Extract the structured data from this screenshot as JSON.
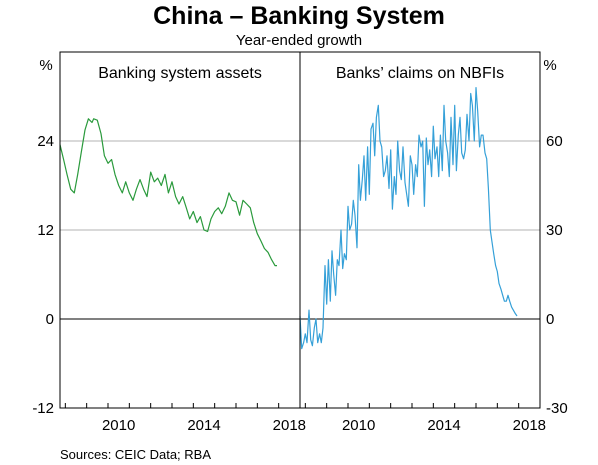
{
  "chart_data": {
    "type": "line",
    "title": "China – Banking System",
    "subtitle": "Year-ended growth",
    "source": "Sources:   CEIC Data; RBA",
    "x_tick_labels": [
      "2010",
      "2014",
      "2018"
    ],
    "panels": [
      {
        "title": "Banking system assets",
        "yunit": "%",
        "ylim": [
          -12,
          36
        ],
        "yticks": [
          -12,
          0,
          12,
          24
        ],
        "xlim": [
          2007.75,
          2019.0
        ],
        "series": [
          {
            "color": "#2a9a3c",
            "x": [
              2007.75,
              2007.92,
              2008.08,
              2008.25,
              2008.42,
              2008.58,
              2008.75,
              2008.92,
              2009.08,
              2009.25,
              2009.33,
              2009.5,
              2009.67,
              2009.83,
              2010.0,
              2010.17,
              2010.33,
              2010.5,
              2010.67,
              2010.83,
              2011.0,
              2011.17,
              2011.33,
              2011.5,
              2011.67,
              2011.83,
              2012.0,
              2012.17,
              2012.33,
              2012.5,
              2012.67,
              2012.83,
              2013.0,
              2013.17,
              2013.33,
              2013.5,
              2013.67,
              2013.83,
              2014.0,
              2014.17,
              2014.33,
              2014.5,
              2014.67,
              2014.83,
              2015.0,
              2015.17,
              2015.33,
              2015.5,
              2015.67,
              2015.83,
              2016.0,
              2016.17,
              2016.33,
              2016.5,
              2016.67,
              2016.83,
              2017.0,
              2017.17,
              2017.33,
              2017.5,
              2017.67,
              2017.83,
              2017.92
            ],
            "y": [
              23.5,
              21.5,
              19.5,
              17.5,
              17.0,
              19.5,
              22.5,
              25.5,
              27.0,
              26.5,
              27.0,
              26.8,
              25.0,
              22.0,
              21.0,
              21.5,
              19.5,
              18.0,
              17.0,
              18.5,
              17.0,
              16.0,
              17.5,
              18.8,
              17.5,
              16.5,
              19.8,
              18.5,
              19.0,
              18.0,
              19.5,
              17.0,
              18.5,
              16.5,
              15.5,
              16.5,
              15.0,
              13.5,
              14.5,
              13.0,
              13.8,
              12.0,
              11.8,
              13.5,
              14.5,
              15.0,
              14.2,
              15.2,
              17.0,
              16.0,
              15.8,
              14.0,
              16.0,
              15.5,
              15.0,
              13.0,
              11.5,
              10.5,
              9.5,
              9.0,
              8.0,
              7.2,
              7.2
            ]
          }
        ]
      },
      {
        "title": "Banks’ claims on NBFIs",
        "yunit": "%",
        "ylim": [
          -30,
          90
        ],
        "yticks": [
          -30,
          0,
          30,
          60
        ],
        "xlim": [
          2007.75,
          2019.0
        ],
        "series": [
          {
            "color": "#35a0d8",
            "x": [
              2007.75,
              2007.83,
              2007.92,
              2008.0,
              2008.08,
              2008.17,
              2008.25,
              2008.33,
              2008.42,
              2008.5,
              2008.58,
              2008.67,
              2008.75,
              2008.83,
              2008.92,
              2009.0,
              2009.08,
              2009.17,
              2009.25,
              2009.33,
              2009.42,
              2009.5,
              2009.58,
              2009.67,
              2009.75,
              2009.83,
              2009.92,
              2010.0,
              2010.08,
              2010.17,
              2010.25,
              2010.33,
              2010.42,
              2010.5,
              2010.58,
              2010.67,
              2010.75,
              2010.83,
              2010.92,
              2011.0,
              2011.08,
              2011.17,
              2011.25,
              2011.33,
              2011.42,
              2011.5,
              2011.58,
              2011.67,
              2011.75,
              2011.83,
              2011.92,
              2012.0,
              2012.08,
              2012.17,
              2012.25,
              2012.33,
              2012.42,
              2012.5,
              2012.58,
              2012.67,
              2012.75,
              2012.83,
              2012.92,
              2013.0,
              2013.08,
              2013.17,
              2013.25,
              2013.33,
              2013.42,
              2013.5,
              2013.58,
              2013.67,
              2013.75,
              2013.83,
              2013.92,
              2014.0,
              2014.08,
              2014.17,
              2014.25,
              2014.33,
              2014.42,
              2014.5,
              2014.58,
              2014.67,
              2014.75,
              2014.83,
              2014.92,
              2015.0,
              2015.08,
              2015.17,
              2015.25,
              2015.33,
              2015.42,
              2015.5,
              2015.58,
              2015.67,
              2015.75,
              2015.83,
              2015.92,
              2016.0,
              2016.08,
              2016.17,
              2016.25,
              2016.33,
              2016.42,
              2016.5,
              2016.58,
              2016.67,
              2016.75,
              2016.83,
              2016.92,
              2017.0,
              2017.08,
              2017.17,
              2017.25,
              2017.33,
              2017.42,
              2017.5,
              2017.58,
              2017.67,
              2017.75,
              2017.83,
              2017.92
            ],
            "y": [
              1,
              -10,
              -8,
              -5,
              -8,
              3,
              -7,
              -9,
              -3,
              0,
              -8,
              -5,
              -8,
              -3,
              18,
              5,
              20,
              6,
              23,
              15,
              8,
              20,
              18,
              30,
              17,
              22,
              20,
              38,
              30,
              32,
              40,
              35,
              24,
              52,
              40,
              47,
              55,
              40,
              58,
              42,
              64,
              66,
              55,
              68,
              72,
              60,
              58,
              48,
              50,
              55,
              44,
              57,
              37,
              48,
              42,
              60,
              50,
              47,
              58,
              46,
              42,
              38,
              55,
              52,
              42,
              52,
              48,
              62,
              58,
              60,
              38,
              61,
              52,
              57,
              48,
              65,
              54,
              58,
              48,
              62,
              50,
              72,
              60,
              56,
              48,
              68,
              52,
              72,
              50,
              62,
              68,
              56,
              54,
              57,
              69,
              60,
              76,
              72,
              60,
              78,
              70,
              58,
              62,
              62,
              56,
              54,
              44,
              30,
              26,
              22,
              18,
              16,
              12,
              10,
              8,
              6,
              6,
              8,
              6,
              4,
              3,
              2,
              1
            ]
          }
        ]
      }
    ]
  }
}
